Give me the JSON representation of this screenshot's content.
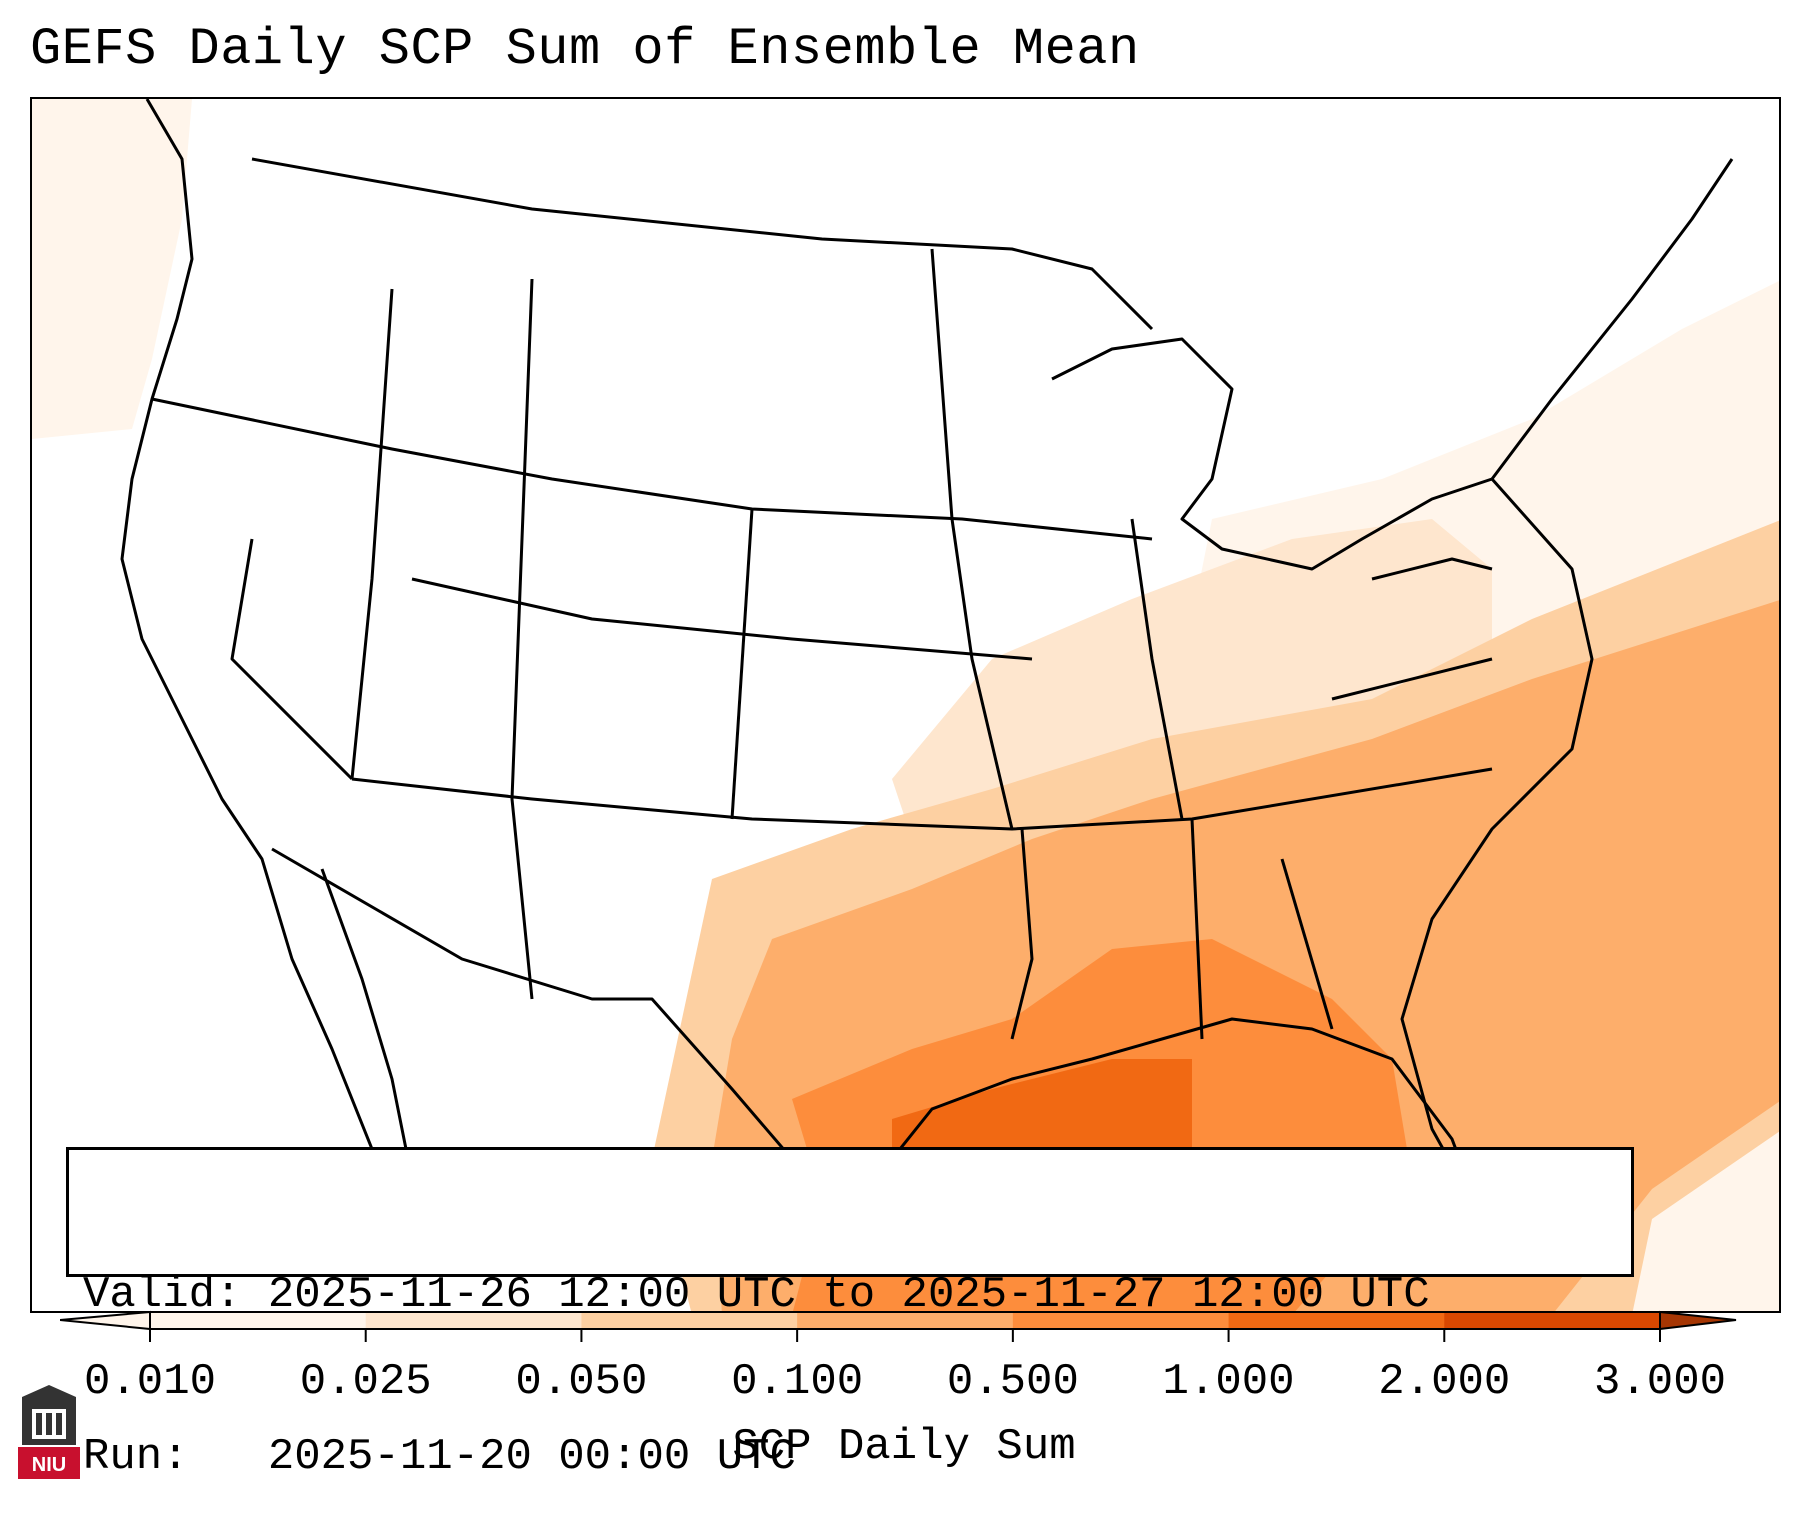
{
  "title": "GEFS Daily SCP Sum of Ensemble Mean",
  "info": {
    "valid_line": "Valid: 2025-11-26 12:00 UTC to 2025-11-27 12:00 UTC",
    "run_line": "Run:   2025-11-20 00:00 UTC"
  },
  "colorbar": {
    "title": "SCP Daily Sum",
    "levels": [
      "0.010",
      "0.025",
      "0.050",
      "0.100",
      "0.500",
      "1.000",
      "2.000",
      "3.000"
    ],
    "colors": [
      "#fff5eb",
      "#fee6ce",
      "#fdd0a2",
      "#fdae6b",
      "#fd8d3c",
      "#f16913",
      "#d94801",
      "#a63603"
    ]
  },
  "logo": {
    "text": "NIU",
    "color": "#c8102e"
  },
  "map": {
    "region": "Continental United States",
    "field": "SCP daily sum, shaded",
    "highlight_area": "Gulf Coast and Southeast US"
  }
}
